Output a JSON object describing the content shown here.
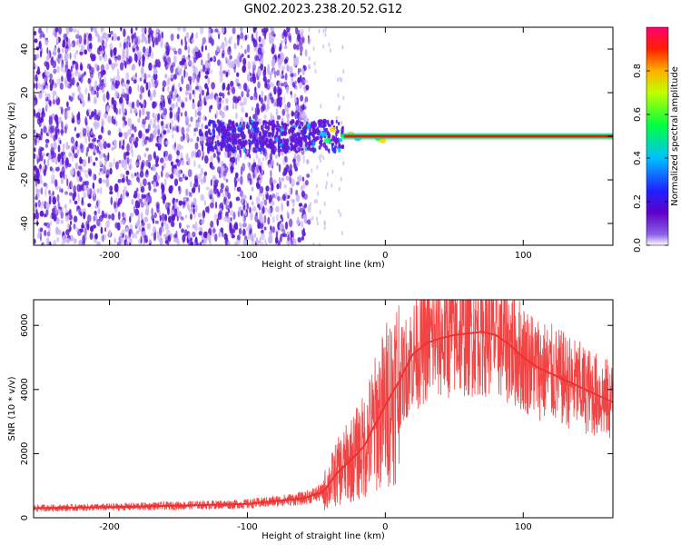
{
  "figure": {
    "title": "GN02.2023.238.20.52.G12"
  },
  "chart_data": [
    {
      "type": "heatmap",
      "xlabel": "Height of straight line (km)",
      "ylabel": "Frequency (Hz)",
      "xlim": [
        -255,
        165
      ],
      "ylim": [
        -50,
        50
      ],
      "x_ticks": [
        -200,
        -100,
        0,
        100
      ],
      "y_ticks": [
        -40,
        -20,
        0,
        20,
        40
      ],
      "colorbar": {
        "label": "Normalized spectral amplitude",
        "range": [
          0,
          1
        ],
        "ticks": [
          "0.0",
          "0.2",
          "0.4",
          "0.6",
          "0.8"
        ],
        "colormap": [
          "#ffffff",
          "#5f00c8",
          "#2020ff",
          "#00c0ff",
          "#00ff40",
          "#ffe000",
          "#ff3000",
          "#ff0060"
        ]
      },
      "noise_region_x": [
        -255,
        -55
      ],
      "signal_line": {
        "frequency": 0,
        "x_start": -30,
        "x_end": 165,
        "halo_color": "#00c8ff",
        "inner_color": "#00e040",
        "core_color": "#ff1010"
      },
      "colors": {
        "noise": "#5f1bd6",
        "light_noise": "#c9b2f5"
      }
    },
    {
      "type": "line",
      "xlabel": "Height of straight line (km)",
      "ylabel": "SNR (10 * v/v)",
      "xlim": [
        -255,
        165
      ],
      "ylim": [
        0,
        6800
      ],
      "x_ticks": [
        -200,
        -100,
        0,
        100
      ],
      "y_ticks": [
        0,
        2000,
        4000,
        6000
      ],
      "color": "#f03030",
      "series": [
        {
          "x": [
            -255,
            -200,
            -150,
            -100,
            -60,
            -45,
            -35,
            -25,
            -15,
            -10,
            -5,
            0,
            5,
            10,
            15,
            20,
            30,
            40,
            50,
            60,
            70,
            80,
            90,
            100,
            110,
            120,
            130,
            140,
            150,
            160,
            165
          ],
          "values": [
            300,
            330,
            380,
            430,
            600,
            800,
            1400,
            1800,
            2250,
            2700,
            3100,
            3500,
            3900,
            4250,
            4700,
            5100,
            5450,
            5600,
            5700,
            5750,
            5800,
            5700,
            5400,
            5000,
            4700,
            4500,
            4300,
            4100,
            3900,
            3700,
            3600
          ]
        }
      ]
    }
  ]
}
